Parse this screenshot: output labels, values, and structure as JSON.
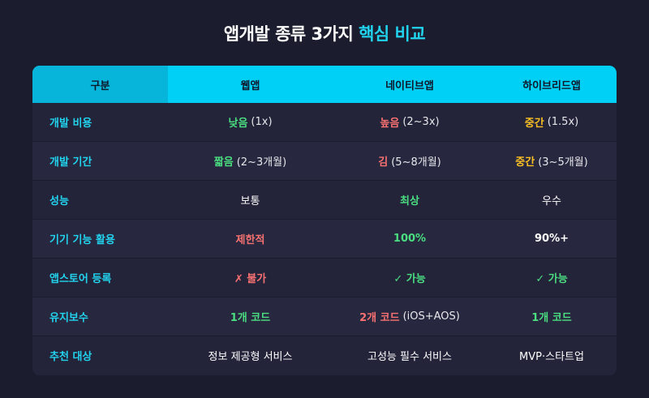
{
  "title": {
    "main": "앱개발 종류 3가지",
    "accent": "핵심 비교"
  },
  "columns": [
    "구분",
    "웹앱",
    "네이티브앱",
    "하이브리드앱"
  ],
  "rows": [
    {
      "label": "개발 비용",
      "web": {
        "main": "낮음",
        "sub": "(1x)"
      },
      "native": {
        "main": "높음",
        "sub": "(2~3x)"
      },
      "hybrid": {
        "main": "중간",
        "sub": "(1.5x)"
      }
    },
    {
      "label": "개발 기간",
      "web": {
        "main": "짧음",
        "sub": "(2~3개월)"
      },
      "native": {
        "main": "김",
        "sub": "(5~8개월)"
      },
      "hybrid": {
        "main": "중간",
        "sub": "(3~5개월)"
      }
    },
    {
      "label": "성능",
      "web": {
        "main": "보통"
      },
      "native": {
        "main": "최상"
      },
      "hybrid": {
        "main": "우수"
      }
    },
    {
      "label": "기기 기능 활용",
      "web": {
        "main": "제한적"
      },
      "native": {
        "main": "100%"
      },
      "hybrid": {
        "main": "90%+"
      }
    },
    {
      "label": "앱스토어 등록",
      "web": {
        "main": "✗ 불가"
      },
      "native": {
        "main": "✓ 가능"
      },
      "hybrid": {
        "main": "✓ 가능"
      }
    },
    {
      "label": "유지보수",
      "web": {
        "main": "1개 코드"
      },
      "native": {
        "main": "2개 코드",
        "sub": "(iOS+AOS)"
      },
      "hybrid": {
        "main": "1개 코드"
      }
    },
    {
      "label": "추천 대상",
      "web": {
        "main": "정보 제공형 서비스"
      },
      "native": {
        "main": "고성능 필수 서비스"
      },
      "hybrid": {
        "main": "MVP·스타트업"
      }
    }
  ],
  "colors": {
    "background": "#1b1c2e",
    "header": "#00d0f5",
    "accent": "#22d3ee",
    "good": "#4ade80",
    "bad": "#f87171",
    "medium": "#fbbf24"
  }
}
